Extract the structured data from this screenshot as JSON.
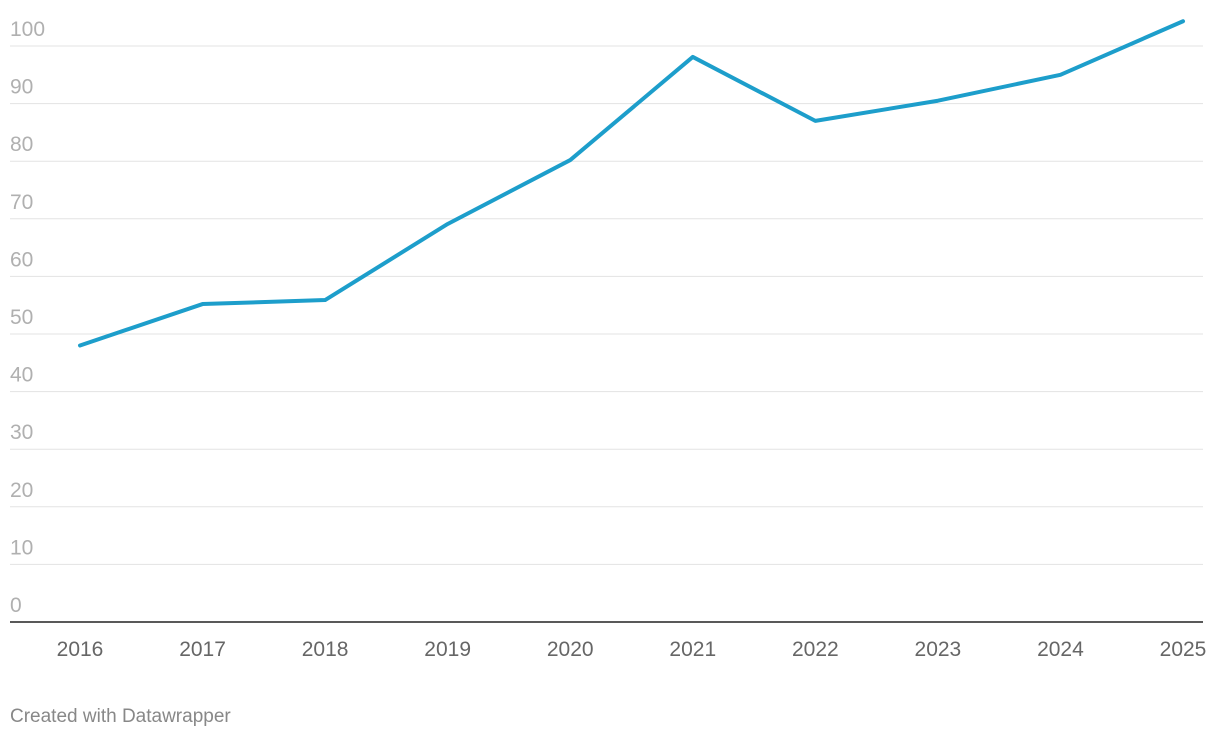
{
  "chart_data": {
    "type": "line",
    "categories": [
      "2016",
      "2017",
      "2018",
      "2019",
      "2020",
      "2021",
      "2022",
      "2023",
      "2024",
      "2025"
    ],
    "values": [
      48,
      55.2,
      55.9,
      69.1,
      80.2,
      98.1,
      87,
      90.5,
      95,
      104.3
    ],
    "color": "#1d9ecb",
    "ylim": [
      0,
      100
    ],
    "yticks": [
      0,
      10,
      20,
      30,
      40,
      50,
      60,
      70,
      80,
      90,
      100
    ],
    "grid": true,
    "credit": "Created with Datawrapper"
  }
}
